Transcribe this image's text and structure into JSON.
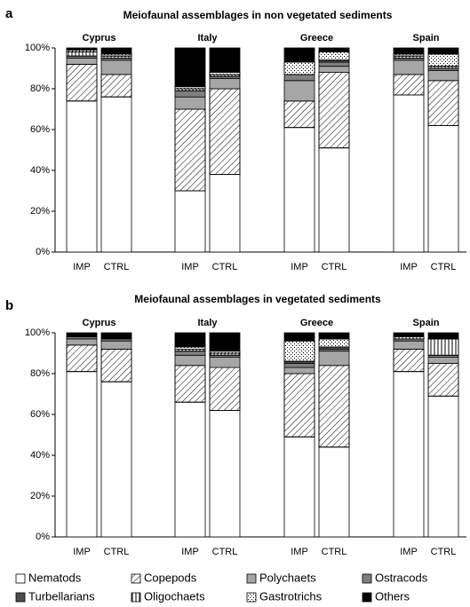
{
  "chart_data": [
    {
      "type": "bar",
      "stacked": true,
      "panel": "a",
      "title": "Meiofaunal assemblages in non vegetated sediments",
      "groups": [
        "Cyprus",
        "Italy",
        "Greece",
        "Spain"
      ],
      "categories": [
        "IMP",
        "CTRL",
        "IMP",
        "CTRL",
        "IMP",
        "CTRL",
        "IMP",
        "CTRL"
      ],
      "ylim": [
        0,
        100
      ],
      "yticks": [
        {
          "value": 0,
          "label": "0%"
        },
        {
          "value": 20,
          "label": "20%"
        },
        {
          "value": 40,
          "label": "40%"
        },
        {
          "value": 60,
          "label": "60%"
        },
        {
          "value": 80,
          "label": "80%"
        },
        {
          "value": 100,
          "label": "100%"
        }
      ],
      "series": [
        {
          "name": "Nematods",
          "color": "#ffffff",
          "pattern": "none",
          "values": [
            74,
            76,
            30,
            38,
            61,
            51,
            77,
            62
          ]
        },
        {
          "name": "Copepods",
          "color": "#ffffff",
          "pattern": "diagonal",
          "values": [
            18,
            11,
            40,
            42,
            13,
            37,
            10,
            22
          ]
        },
        {
          "name": "Polychaets",
          "color": "#a6a6a6",
          "pattern": "none",
          "values": [
            3,
            7,
            6,
            5,
            10,
            3,
            7,
            5
          ]
        },
        {
          "name": "Ostracods",
          "color": "#7f7f7f",
          "pattern": "none",
          "values": [
            1,
            1,
            3,
            1,
            3,
            2,
            1,
            1
          ]
        },
        {
          "name": "Turbellarians",
          "color": "#4d4d4d",
          "pattern": "none",
          "values": [
            0,
            0,
            0,
            0,
            0,
            1,
            0,
            0
          ]
        },
        {
          "name": "Oligochaets",
          "color": "#ffffff",
          "pattern": "vertical",
          "values": [
            2,
            1,
            1,
            1,
            0,
            0,
            1,
            1
          ]
        },
        {
          "name": "Gastrotrichs",
          "color": "#ffffff",
          "pattern": "dots",
          "values": [
            1,
            1,
            1,
            1,
            6,
            4,
            1,
            6
          ]
        },
        {
          "name": "Others",
          "color": "#000000",
          "pattern": "none",
          "values": [
            1,
            3,
            19,
            12,
            7,
            2,
            3,
            3
          ]
        }
      ]
    },
    {
      "type": "bar",
      "stacked": true,
      "panel": "b",
      "title": "Meiofaunal assemblages in vegetated sediments",
      "groups": [
        "Cyprus",
        "Italy",
        "Greece",
        "Spain"
      ],
      "categories": [
        "IMP",
        "CTRL",
        "IMP",
        "CTRL",
        "IMP",
        "CTRL",
        "IMP",
        "CTRL"
      ],
      "ylim": [
        0,
        100
      ],
      "yticks": [
        {
          "value": 0,
          "label": "0%"
        },
        {
          "value": 20,
          "label": "20%"
        },
        {
          "value": 40,
          "label": "40%"
        },
        {
          "value": 60,
          "label": "60%"
        },
        {
          "value": 80,
          "label": "80%"
        },
        {
          "value": 100,
          "label": "100%"
        }
      ],
      "series": [
        {
          "name": "Nematods",
          "color": "#ffffff",
          "pattern": "none",
          "values": [
            81,
            76,
            66,
            62,
            49,
            44,
            81,
            69
          ]
        },
        {
          "name": "Copepods",
          "color": "#ffffff",
          "pattern": "diagonal",
          "values": [
            13,
            16,
            18,
            21,
            31,
            40,
            11,
            16
          ]
        },
        {
          "name": "Polychaets",
          "color": "#a6a6a6",
          "pattern": "none",
          "values": [
            3,
            4,
            5,
            5,
            3,
            7,
            4,
            3
          ]
        },
        {
          "name": "Ostracods",
          "color": "#7f7f7f",
          "pattern": "none",
          "values": [
            1,
            1,
            2,
            1,
            2,
            1,
            1,
            1
          ]
        },
        {
          "name": "Turbellarians",
          "color": "#4d4d4d",
          "pattern": "none",
          "values": [
            0,
            0,
            0,
            0,
            1,
            1,
            0,
            0
          ]
        },
        {
          "name": "Oligochaets",
          "color": "#ffffff",
          "pattern": "vertical",
          "values": [
            0,
            0,
            1,
            1,
            0,
            0,
            1,
            8
          ]
        },
        {
          "name": "Gastrotrichs",
          "color": "#ffffff",
          "pattern": "dots",
          "values": [
            0,
            0,
            1,
            1,
            10,
            4,
            0,
            0
          ]
        },
        {
          "name": "Others",
          "color": "#000000",
          "pattern": "none",
          "values": [
            2,
            3,
            7,
            9,
            4,
            3,
            2,
            3
          ]
        }
      ]
    }
  ]
}
